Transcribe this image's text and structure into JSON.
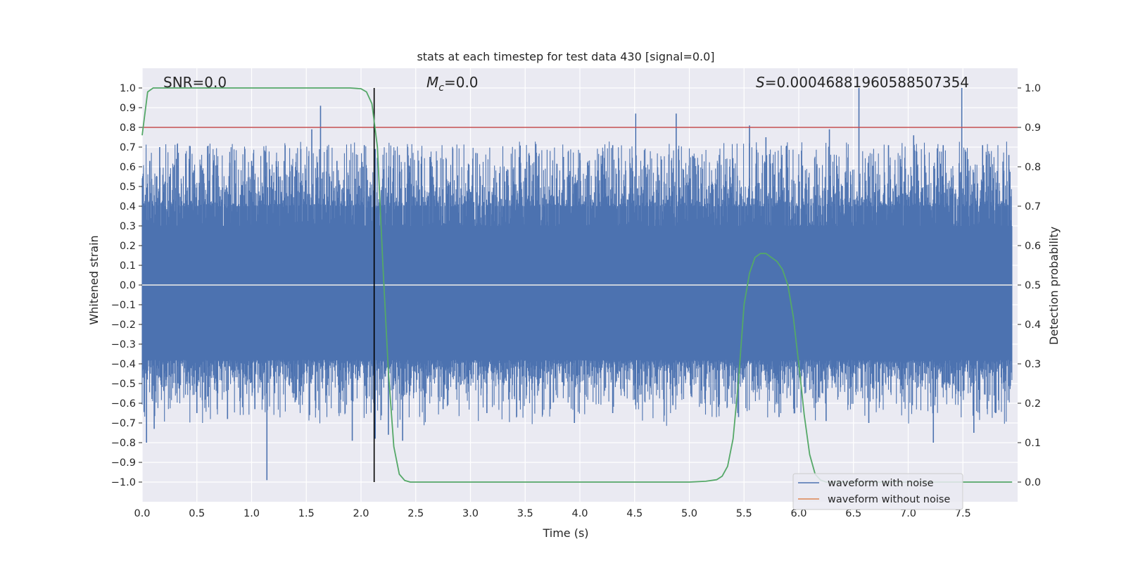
{
  "chart_data": {
    "type": "line",
    "title": "stats at each timestep for test data 430 [signal=0.0]",
    "xlabel": "Time (s)",
    "ylabel": "Whitened strain",
    "y2label": "Detection probability",
    "xlim": [
      0.0,
      8.0
    ],
    "ylim": [
      -1.1,
      1.1
    ],
    "y2lim": [
      -0.05,
      1.05
    ],
    "x_ticks": [
      "0.0",
      "0.5",
      "1.0",
      "1.5",
      "2.0",
      "2.5",
      "3.0",
      "3.5",
      "4.0",
      "4.5",
      "5.0",
      "5.5",
      "6.0",
      "6.5",
      "7.0",
      "7.5"
    ],
    "y_ticks": [
      "1.0",
      "0.9",
      "0.8",
      "0.7",
      "0.6",
      "0.5",
      "0.4",
      "0.3",
      "0.2",
      "0.1",
      "0.0",
      "−0.1",
      "−0.2",
      "−0.3",
      "−0.4",
      "−0.5",
      "−0.6",
      "−0.7",
      "−0.8",
      "−0.9",
      "−1.0"
    ],
    "y2_ticks": [
      "1.0",
      "0.9",
      "0.8",
      "0.7",
      "0.6",
      "0.5",
      "0.4",
      "0.3",
      "0.2",
      "0.1",
      "0.0"
    ],
    "grid": true,
    "legend_position": "bottom-right",
    "annotations": {
      "snr": "SNR=0.0",
      "mc_symbol": "M",
      "mc_sub": "c",
      "mc_value": "=0.0",
      "s_symbol": "S",
      "s_value": "=0.00046881960588507354"
    },
    "series": [
      {
        "name": "waveform with noise",
        "color": "#4c72b0",
        "kind": "noise",
        "core_amplitude": 0.2,
        "spikes_pos": [
          [
            0.07,
            0.63
          ],
          [
            0.16,
            0.7
          ],
          [
            0.25,
            0.55
          ],
          [
            0.43,
            0.64
          ],
          [
            0.65,
            0.62
          ],
          [
            0.8,
            0.62
          ],
          [
            1.0,
            0.63
          ],
          [
            1.25,
            0.55
          ],
          [
            1.45,
            0.69
          ],
          [
            1.55,
            0.79
          ],
          [
            1.63,
            0.91
          ],
          [
            1.78,
            0.63
          ],
          [
            2.03,
            0.71
          ],
          [
            2.13,
            0.69
          ],
          [
            2.35,
            0.66
          ],
          [
            2.63,
            0.65
          ],
          [
            3.05,
            0.67
          ],
          [
            3.5,
            0.59
          ],
          [
            3.85,
            0.65
          ],
          [
            4.0,
            0.67
          ],
          [
            4.3,
            0.71
          ],
          [
            4.51,
            0.87
          ],
          [
            4.88,
            0.87
          ],
          [
            5.55,
            0.81
          ],
          [
            5.7,
            0.75
          ],
          [
            6.28,
            0.79
          ],
          [
            6.55,
            1.0
          ],
          [
            6.82,
            0.71
          ],
          [
            7.05,
            0.76
          ],
          [
            7.32,
            0.71
          ],
          [
            7.49,
            1.0
          ],
          [
            7.68,
            0.71
          ],
          [
            7.92,
            0.66
          ]
        ],
        "spikes_neg": [
          [
            0.04,
            -0.8
          ],
          [
            0.11,
            -0.73
          ],
          [
            0.5,
            -0.65
          ],
          [
            0.78,
            -0.68
          ],
          [
            1.03,
            -0.63
          ],
          [
            1.14,
            -0.99
          ],
          [
            1.53,
            -0.66
          ],
          [
            1.92,
            -0.79
          ],
          [
            2.13,
            -0.78
          ],
          [
            2.25,
            -0.76
          ],
          [
            2.38,
            -0.79
          ],
          [
            2.75,
            -0.63
          ],
          [
            3.15,
            -0.65
          ],
          [
            3.95,
            -0.7
          ],
          [
            4.3,
            -0.65
          ],
          [
            4.85,
            -0.61
          ],
          [
            5.45,
            -0.67
          ],
          [
            5.82,
            -0.67
          ],
          [
            6.25,
            -0.69
          ],
          [
            6.64,
            -0.7
          ],
          [
            7.23,
            -0.8
          ],
          [
            7.6,
            -0.75
          ],
          [
            7.8,
            -0.65
          ]
        ]
      },
      {
        "name": "waveform without noise",
        "color": "#dd8452",
        "y": 0.0
      },
      {
        "name": "detection probability",
        "color": "#55a868",
        "axis": "right",
        "x": [
          0.0,
          0.05,
          0.1,
          0.2,
          0.5,
          1.0,
          1.5,
          1.9,
          2.0,
          2.05,
          2.1,
          2.15,
          2.2,
          2.25,
          2.3,
          2.35,
          2.4,
          2.45,
          2.5,
          3.0,
          4.0,
          5.0,
          5.15,
          5.25,
          5.3,
          5.35,
          5.4,
          5.45,
          5.5,
          5.55,
          5.6,
          5.65,
          5.7,
          5.75,
          5.8,
          5.85,
          5.9,
          5.95,
          6.0,
          6.05,
          6.1,
          6.15,
          6.2,
          6.25,
          6.3,
          6.35,
          6.4,
          6.5,
          7.0,
          7.95
        ],
        "y": [
          0.88,
          0.99,
          1.0,
          1.0,
          1.0,
          1.0,
          1.0,
          1.0,
          0.998,
          0.99,
          0.96,
          0.85,
          0.55,
          0.28,
          0.09,
          0.02,
          0.004,
          0.0,
          0.0,
          0.0,
          0.0,
          0.0,
          0.002,
          0.006,
          0.015,
          0.04,
          0.11,
          0.26,
          0.45,
          0.53,
          0.57,
          0.58,
          0.58,
          0.57,
          0.56,
          0.54,
          0.5,
          0.42,
          0.3,
          0.17,
          0.07,
          0.02,
          0.005,
          0.0,
          0.0,
          0.0,
          0.0,
          0.0,
          0.0,
          0.0
        ]
      }
    ],
    "threshold": {
      "value": 0.9,
      "axis": "right",
      "color": "#c44e52"
    },
    "marker_line": {
      "x": 2.12,
      "y_range": [
        -1.0,
        1.0
      ],
      "color": "#000000"
    }
  }
}
